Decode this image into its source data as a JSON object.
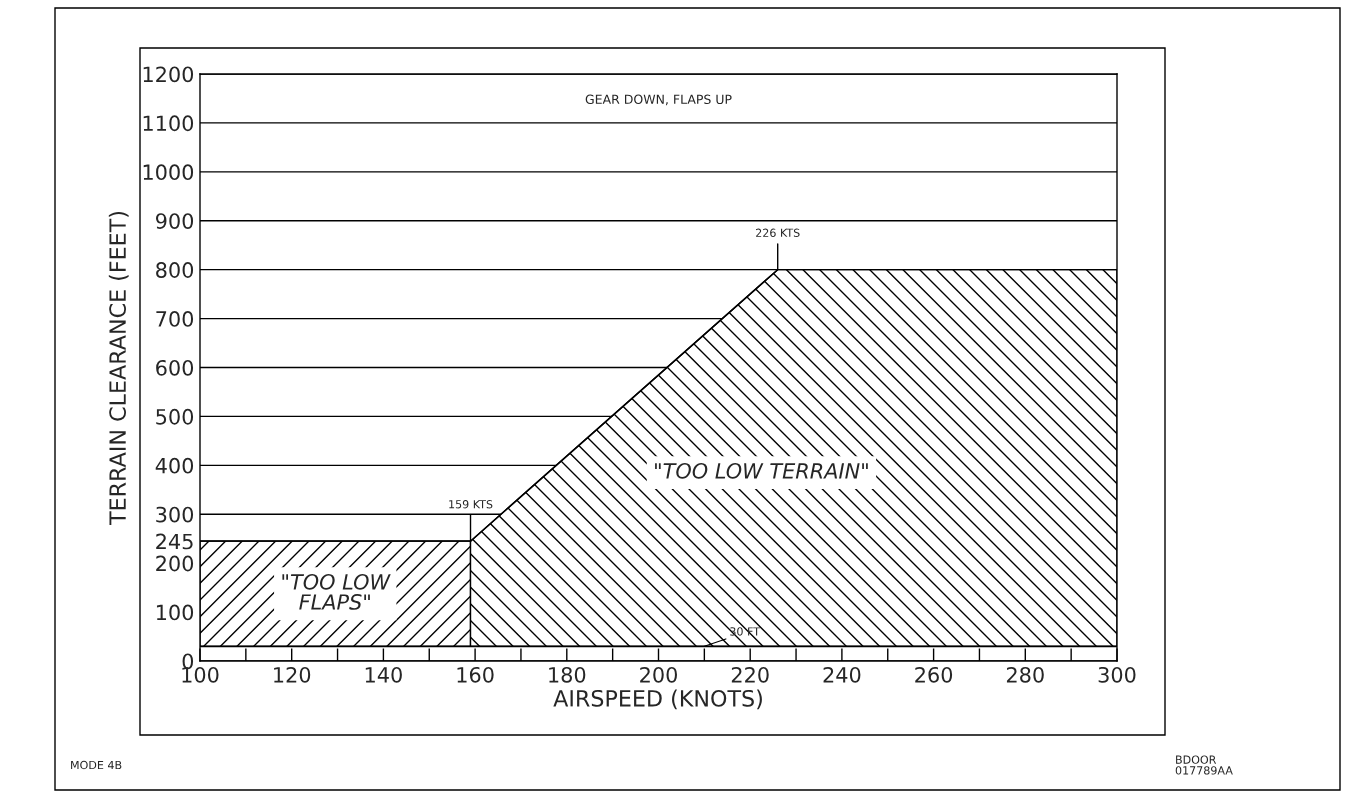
{
  "chart_data": {
    "type": "area",
    "xlabel": "AIRSPEED (KNOTS)",
    "ylabel": "TERRAIN CLEARANCE (FEET)",
    "series": [
      {
        "name": "\"TOO LOW\nFLAPS\"",
        "color": "#000000",
        "x": [
          100,
          159
        ],
        "values": [
          245,
          245
        ]
      },
      {
        "name": "\"TOO LOW TERRAIN\"",
        "color": "#000000",
        "x": [
          159,
          226,
          300
        ],
        "values": [
          245,
          800,
          800
        ]
      }
    ],
    "xlim": [
      100,
      300
    ],
    "xticks": [
      100,
      {
        "value": 110,
        "label": null
      },
      120,
      {
        "value": 130,
        "label": null
      },
      140,
      {
        "value": 150,
        "label": null
      },
      160,
      {
        "value": 170,
        "label": null
      },
      180,
      {
        "value": 190,
        "label": null
      },
      200,
      {
        "value": 210,
        "label": null
      },
      220,
      {
        "value": 230,
        "label": null
      },
      240,
      {
        "value": 250,
        "label": null
      },
      260,
      {
        "value": 270,
        "label": null
      },
      280,
      {
        "value": 290,
        "label": null
      },
      300
    ],
    "ylim": [
      0,
      1200
    ],
    "yticks": [
      0,
      100,
      200,
      245,
      300,
      400,
      500,
      600,
      700,
      800,
      900,
      1000,
      1100,
      1200
    ],
    "grid": "y",
    "legend": false,
    "ref_lines": [
      {
        "axis": "y",
        "value": 30,
        "label": "30 FT",
        "color": "#000000"
      }
    ],
    "annotations": [
      "GEAR DOWN, FLAPS UP",
      {
        "text": "159 KTS",
        "x": 159,
        "y": 245
      },
      {
        "text": "226 KTS",
        "x": 226,
        "y": 800
      },
      "MODE 4B",
      "BDOOR\n017789AA"
    ]
  }
}
